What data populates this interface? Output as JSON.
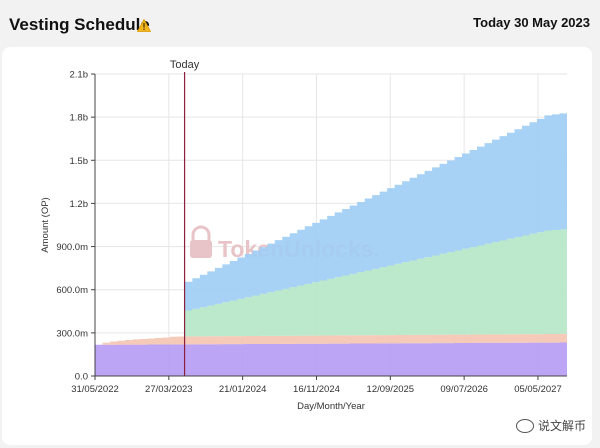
{
  "header": {
    "title": "Vesting Schedule",
    "warning_icon": "warning-triangle-icon",
    "date": "Today 30 May 2023"
  },
  "watermark": {
    "text": "TokenUnlocks.",
    "icon": "padlock-icon"
  },
  "footer_watermark": {
    "text": "说文解币",
    "icon": "wechat-icon"
  },
  "colors": {
    "blue": "#9fcdf4",
    "green": "#b6e7c8",
    "salmon": "#f5c5b2",
    "purple": "#b59df3",
    "today_line": "#8b1f3f",
    "grid": "#e6e6e6",
    "watermark": "#e8c3c7"
  },
  "chart_data": {
    "type": "area",
    "stacked": true,
    "step": true,
    "xlabel": "Day/Month/Year",
    "ylabel": "Amount (OP)",
    "x_range": [
      "2022-05-31",
      "2027-08-31"
    ],
    "ylim": [
      0,
      2100000000
    ],
    "x_tick_dates": [
      "2022-05-31",
      "2023-03-27",
      "2024-01-21",
      "2024-11-16",
      "2025-09-12",
      "2026-07-09",
      "2027-05-05"
    ],
    "x_ticks": [
      "31/05/2022",
      "27/03/2023",
      "21/01/2024",
      "16/11/2024",
      "12/09/2025",
      "09/07/2026",
      "05/05/2027"
    ],
    "y_tick_values": [
      0,
      300000000,
      600000000,
      900000000,
      1200000000,
      1500000000,
      1800000000,
      2100000000
    ],
    "y_ticks": [
      "0.0",
      "300.0m",
      "600.0m",
      "900.0m",
      "1.2b",
      "1.5b",
      "1.8b",
      "2.1b"
    ],
    "grid": true,
    "today_marker": {
      "date": "2023-05-30",
      "label": "Today"
    },
    "series": [
      {
        "color": "#b59df3",
        "points": [
          [
            "2022-05-31",
            217000000
          ],
          [
            "2027-08-31",
            233000000
          ]
        ]
      },
      {
        "color": "#f5c5b2",
        "points": [
          [
            "2022-05-31",
            0
          ],
          [
            "2022-07-15",
            20000000
          ],
          [
            "2022-10-15",
            35000000
          ],
          [
            "2023-02-01",
            45000000
          ],
          [
            "2023-04-15",
            55000000
          ],
          [
            "2027-08-31",
            60000000
          ]
        ]
      },
      {
        "color": "#b6e7c8",
        "points": [
          [
            "2022-05-31",
            0
          ],
          [
            "2023-05-30",
            0
          ],
          [
            "2023-05-31",
            180000000
          ],
          [
            "2027-05-31",
            720000000
          ],
          [
            "2027-08-31",
            730000000
          ]
        ]
      },
      {
        "color": "#9fcdf4",
        "points": [
          [
            "2022-05-31",
            0
          ],
          [
            "2023-05-30",
            0
          ],
          [
            "2023-05-31",
            200000000
          ],
          [
            "2027-05-31",
            800000000
          ],
          [
            "2027-08-31",
            810000000
          ]
        ]
      }
    ]
  }
}
